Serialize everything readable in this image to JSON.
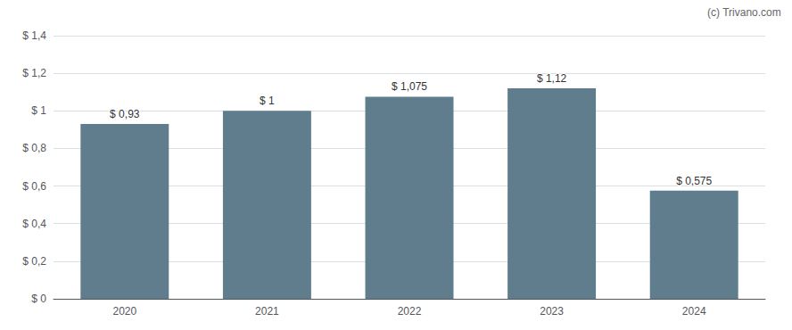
{
  "chart_data": {
    "type": "bar",
    "categories": [
      "2020",
      "2021",
      "2022",
      "2023",
      "2024"
    ],
    "values": [
      0.93,
      1.0,
      1.075,
      1.12,
      0.575
    ],
    "value_labels": [
      "$ 0,93",
      "$ 1",
      "$ 1,075",
      "$ 1,12",
      "$ 0,575"
    ],
    "data_labels": true,
    "color": "#5f7d8c",
    "ylim": [
      0,
      1.4
    ],
    "yticks": [
      {
        "value": 0,
        "label": "$ 0"
      },
      {
        "value": 0.2,
        "label": "$ 0,2"
      },
      {
        "value": 0.4,
        "label": "$ 0,4"
      },
      {
        "value": 0.6,
        "label": "$ 0,6"
      },
      {
        "value": 0.8,
        "label": "$ 0,8"
      },
      {
        "value": 1.0,
        "label": "$ 1"
      },
      {
        "value": 1.2,
        "label": "$ 1,2"
      },
      {
        "value": 1.4,
        "label": "$ 1,4"
      }
    ],
    "grid": true,
    "annotations": [
      "(c) Trivano.com"
    ]
  }
}
